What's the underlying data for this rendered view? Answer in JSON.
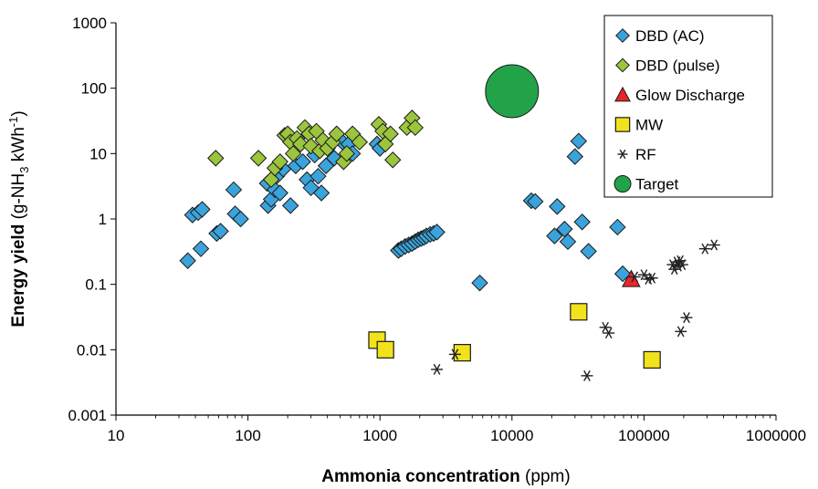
{
  "chart_data": {
    "type": "scatter",
    "x_scale": "log",
    "y_scale": "log",
    "xlim": [
      10,
      1000000
    ],
    "ylim": [
      0.001,
      1000
    ],
    "grid": false,
    "legend_position": "top-right",
    "xlabel": {
      "bold": "Ammonia concentration",
      "normal": " (ppm)"
    },
    "ylabel": {
      "bold": "Energy yield",
      "normal_pre": " (g-NH",
      "sub": "3",
      "normal_mid": " kWh",
      "sup": "-1",
      "normal_post": ")"
    },
    "x_ticks": [
      {
        "value": 10,
        "label": "10"
      },
      {
        "value": 100,
        "label": "100"
      },
      {
        "value": 1000,
        "label": "1000"
      },
      {
        "value": 10000,
        "label": "10000"
      },
      {
        "value": 100000,
        "label": "100000"
      },
      {
        "value": 1000000,
        "label": "1000000"
      }
    ],
    "y_ticks": [
      {
        "value": 0.001,
        "label": "0.001"
      },
      {
        "value": 0.01,
        "label": "0.01"
      },
      {
        "value": 0.1,
        "label": "0.1"
      },
      {
        "value": 1,
        "label": "1"
      },
      {
        "value": 10,
        "label": "10"
      },
      {
        "value": 100,
        "label": "100"
      },
      {
        "value": 1000,
        "label": "1000"
      }
    ],
    "series": [
      {
        "name": "DBD (AC)",
        "marker": "diamond",
        "color": "#3BA3DB",
        "stroke": "#1a1a1a",
        "points": [
          [
            35,
            0.23
          ],
          [
            38,
            1.15
          ],
          [
            42,
            1.25
          ],
          [
            44,
            0.35
          ],
          [
            45,
            1.4
          ],
          [
            58,
            0.6
          ],
          [
            62,
            0.65
          ],
          [
            78,
            2.8
          ],
          [
            80,
            1.2
          ],
          [
            88,
            1.0
          ],
          [
            140,
            3.5
          ],
          [
            142,
            1.6
          ],
          [
            150,
            2.0
          ],
          [
            160,
            2.8
          ],
          [
            165,
            4.5
          ],
          [
            175,
            2.5
          ],
          [
            185,
            5.8
          ],
          [
            210,
            1.6
          ],
          [
            230,
            6.5
          ],
          [
            260,
            7.5
          ],
          [
            280,
            4.0
          ],
          [
            300,
            3.0
          ],
          [
            320,
            9.5
          ],
          [
            340,
            4.5
          ],
          [
            360,
            2.5
          ],
          [
            390,
            6.5
          ],
          [
            450,
            8.5
          ],
          [
            520,
            15
          ],
          [
            580,
            14
          ],
          [
            620,
            10
          ],
          [
            950,
            14
          ],
          [
            1000,
            12
          ],
          [
            1380,
            0.33
          ],
          [
            1450,
            0.35
          ],
          [
            1550,
            0.38
          ],
          [
            1650,
            0.4
          ],
          [
            1750,
            0.42
          ],
          [
            1850,
            0.45
          ],
          [
            1950,
            0.48
          ],
          [
            2050,
            0.5
          ],
          [
            2150,
            0.52
          ],
          [
            2250,
            0.55
          ],
          [
            2400,
            0.58
          ],
          [
            2550,
            0.6
          ],
          [
            2700,
            0.63
          ],
          [
            5700,
            0.105
          ],
          [
            14000,
            1.9
          ],
          [
            15000,
            1.85
          ],
          [
            21000,
            0.55
          ],
          [
            22000,
            1.55
          ],
          [
            25000,
            0.7
          ],
          [
            26500,
            0.45
          ],
          [
            30000,
            9.0
          ],
          [
            32000,
            15.5
          ],
          [
            34000,
            0.9
          ],
          [
            38000,
            0.32
          ],
          [
            63000,
            0.75
          ],
          [
            69000,
            0.145
          ]
        ]
      },
      {
        "name": "DBD (pulse)",
        "marker": "diamond",
        "color": "#9BC53D",
        "stroke": "#1a1a1a",
        "points": [
          [
            57,
            8.5
          ],
          [
            120,
            8.5
          ],
          [
            150,
            4.0
          ],
          [
            160,
            6.0
          ],
          [
            175,
            7.5
          ],
          [
            190,
            19
          ],
          [
            200,
            20
          ],
          [
            210,
            15
          ],
          [
            220,
            10
          ],
          [
            235,
            17
          ],
          [
            250,
            14
          ],
          [
            270,
            25
          ],
          [
            290,
            20
          ],
          [
            300,
            13
          ],
          [
            330,
            22
          ],
          [
            350,
            11
          ],
          [
            370,
            16
          ],
          [
            400,
            12
          ],
          [
            440,
            15
          ],
          [
            470,
            20
          ],
          [
            530,
            7.5
          ],
          [
            560,
            10
          ],
          [
            620,
            20
          ],
          [
            700,
            15
          ],
          [
            980,
            28
          ],
          [
            1050,
            22
          ],
          [
            1100,
            14
          ],
          [
            1200,
            20
          ],
          [
            1250,
            8.0
          ],
          [
            1600,
            25
          ],
          [
            1750,
            35
          ],
          [
            1850,
            25
          ]
        ]
      },
      {
        "name": "Glow Discharge",
        "marker": "triangle",
        "color": "#E8262B",
        "stroke": "#1a1a1a",
        "points": [
          [
            80000,
            0.12
          ]
        ]
      },
      {
        "name": "MW",
        "marker": "square",
        "color": "#F2E21B",
        "stroke": "#1a1a1a",
        "points": [
          [
            950,
            0.014
          ],
          [
            1100,
            0.01
          ],
          [
            4200,
            0.009
          ],
          [
            32000,
            0.038
          ],
          [
            115000,
            0.007
          ]
        ]
      },
      {
        "name": "RF",
        "marker": "star",
        "color": "#222222",
        "stroke": "#222222",
        "points": [
          [
            2700,
            0.005
          ],
          [
            3700,
            0.0085
          ],
          [
            37000,
            0.004
          ],
          [
            51000,
            0.022
          ],
          [
            54000,
            0.018
          ],
          [
            85000,
            0.13
          ],
          [
            100000,
            0.14
          ],
          [
            108000,
            0.12
          ],
          [
            115000,
            0.125
          ],
          [
            165000,
            0.2
          ],
          [
            170000,
            0.17
          ],
          [
            178000,
            0.22
          ],
          [
            182000,
            0.19
          ],
          [
            188000,
            0.23
          ],
          [
            195000,
            0.2
          ],
          [
            190000,
            0.019
          ],
          [
            210000,
            0.031
          ],
          [
            290000,
            0.35
          ],
          [
            340000,
            0.4
          ]
        ]
      },
      {
        "name": "Target",
        "marker": "circle",
        "color": "#22A34A",
        "stroke": "#1a1a1a",
        "points": [
          [
            10000,
            90
          ]
        ]
      }
    ]
  }
}
